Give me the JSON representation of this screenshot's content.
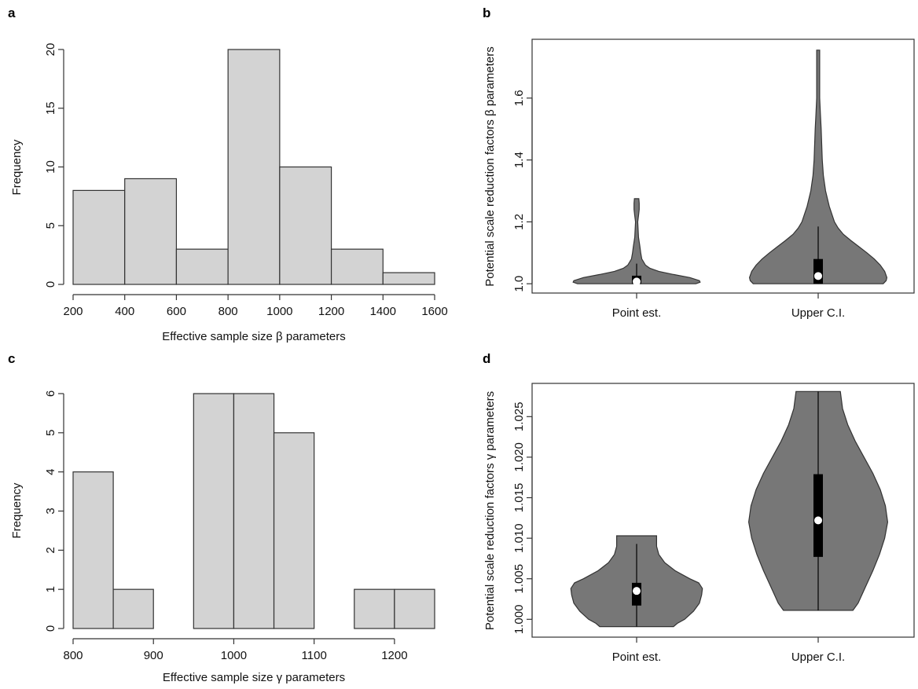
{
  "colors": {
    "hist_fill": "#d3d3d3",
    "violin_fill": "#777777",
    "line": "#333333",
    "median_dot": "#ffffff",
    "box": "#000000"
  },
  "chart_data": [
    {
      "panel": "a",
      "type": "bar",
      "bins": [
        [
          200,
          400
        ],
        [
          400,
          600
        ],
        [
          600,
          800
        ],
        [
          800,
          1000
        ],
        [
          1000,
          1200
        ],
        [
          1200,
          1400
        ],
        [
          1400,
          1600
        ]
      ],
      "values": [
        8,
        9,
        3,
        20,
        10,
        3,
        1
      ],
      "xlabel": "Effective sample size β parameters",
      "ylabel": "Frequency",
      "xticks": [
        200,
        400,
        600,
        800,
        1000,
        1200,
        1400,
        1600
      ],
      "yticks": [
        0,
        5,
        10,
        15,
        20
      ],
      "xlim": [
        200,
        1600
      ],
      "ylim": [
        0,
        20
      ]
    },
    {
      "panel": "b",
      "type": "violin",
      "categories": [
        "Point est.",
        "Upper C.I."
      ],
      "ylabel": "Potential scale reduction factors β parameters",
      "yticks": [
        1.0,
        1.2,
        1.4,
        1.6
      ],
      "ytick_labels": [
        "1.0",
        "1.2",
        "1.4",
        "1.6"
      ],
      "ylim": [
        0.97,
        1.79
      ],
      "violins": [
        {
          "name": "Point est.",
          "min": 1.0,
          "max": 1.275,
          "q1": 1.0,
          "median": 1.007,
          "q3": 1.026,
          "whisker_high": 1.065,
          "profile": [
            [
              1.0,
              0.8
            ],
            [
              1.005,
              0.86
            ],
            [
              1.01,
              0.85
            ],
            [
              1.02,
              0.72
            ],
            [
              1.03,
              0.5
            ],
            [
              1.04,
              0.3
            ],
            [
              1.05,
              0.18
            ],
            [
              1.06,
              0.12
            ],
            [
              1.08,
              0.07
            ],
            [
              1.1,
              0.055
            ],
            [
              1.12,
              0.045
            ],
            [
              1.15,
              0.025
            ],
            [
              1.2,
              0.015
            ],
            [
              1.22,
              0.025
            ],
            [
              1.24,
              0.035
            ],
            [
              1.26,
              0.035
            ],
            [
              1.275,
              0.03
            ]
          ]
        },
        {
          "name": "Upper C.I.",
          "min": 1.0,
          "max": 1.755,
          "q1": 1.0,
          "median": 1.025,
          "q3": 1.08,
          "whisker_high": 1.185,
          "profile": [
            [
              1.0,
              0.88
            ],
            [
              1.01,
              0.92
            ],
            [
              1.02,
              0.93
            ],
            [
              1.04,
              0.9
            ],
            [
              1.06,
              0.84
            ],
            [
              1.08,
              0.76
            ],
            [
              1.1,
              0.66
            ],
            [
              1.12,
              0.55
            ],
            [
              1.14,
              0.44
            ],
            [
              1.16,
              0.34
            ],
            [
              1.18,
              0.27
            ],
            [
              1.2,
              0.22
            ],
            [
              1.25,
              0.15
            ],
            [
              1.3,
              0.1
            ],
            [
              1.35,
              0.07
            ],
            [
              1.4,
              0.055
            ],
            [
              1.5,
              0.04
            ],
            [
              1.55,
              0.03
            ],
            [
              1.6,
              0.02
            ],
            [
              1.65,
              0.02
            ],
            [
              1.7,
              0.02
            ],
            [
              1.755,
              0.02
            ]
          ]
        }
      ]
    },
    {
      "panel": "c",
      "type": "bar",
      "bins": [
        [
          800,
          850
        ],
        [
          850,
          900
        ],
        [
          900,
          950
        ],
        [
          950,
          1000
        ],
        [
          1000,
          1050
        ],
        [
          1050,
          1100
        ],
        [
          1100,
          1150
        ],
        [
          1150,
          1200
        ],
        [
          1200,
          1250
        ]
      ],
      "values": [
        4,
        1,
        0,
        6,
        6,
        5,
        0,
        1,
        1
      ],
      "xlabel": "Effective sample size γ parameters",
      "ylabel": "Frequency",
      "xticks": [
        800,
        900,
        1000,
        1100,
        1200
      ],
      "yticks": [
        0,
        1,
        2,
        3,
        4,
        5,
        6
      ],
      "xlim": [
        800,
        1250
      ],
      "ylim": [
        0,
        6
      ]
    },
    {
      "panel": "d",
      "type": "violin",
      "categories": [
        "Point est.",
        "Upper C.I."
      ],
      "ylabel": "Potential scale reduction factors γ parameters",
      "yticks": [
        1.0,
        1.005,
        1.01,
        1.015,
        1.02,
        1.025
      ],
      "ytick_labels": [
        "1.000",
        "1.005",
        "1.010",
        "1.015",
        "1.020",
        "1.025"
      ],
      "ylim": [
        0.9978,
        1.0291
      ],
      "violins": [
        {
          "name": "Point est.",
          "min": 0.9991,
          "max": 1.0103,
          "q1": 1.0017,
          "median": 1.0035,
          "q3": 1.0045,
          "whisker_high": 1.0093,
          "profile": [
            [
              0.9991,
              0.5
            ],
            [
              0.9995,
              0.55
            ],
            [
              1.0,
              0.65
            ],
            [
              1.001,
              0.77
            ],
            [
              1.002,
              0.85
            ],
            [
              1.003,
              0.88
            ],
            [
              1.0038,
              0.89
            ],
            [
              1.0045,
              0.84
            ],
            [
              1.005,
              0.72
            ],
            [
              1.006,
              0.52
            ],
            [
              1.007,
              0.38
            ],
            [
              1.008,
              0.3
            ],
            [
              1.009,
              0.27
            ],
            [
              1.01,
              0.27
            ],
            [
              1.0103,
              0.27
            ]
          ]
        },
        {
          "name": "Upper C.I.",
          "min": 1.0011,
          "max": 1.0281,
          "q1": 1.0077,
          "median": 1.0122,
          "q3": 1.0179,
          "whisker_high": 1.0281,
          "profile": [
            [
              1.0011,
              0.47
            ],
            [
              1.002,
              0.54
            ],
            [
              1.004,
              0.64
            ],
            [
              1.006,
              0.74
            ],
            [
              1.008,
              0.83
            ],
            [
              1.01,
              0.9
            ],
            [
              1.012,
              0.94
            ],
            [
              1.014,
              0.91
            ],
            [
              1.016,
              0.84
            ],
            [
              1.018,
              0.74
            ],
            [
              1.02,
              0.62
            ],
            [
              1.022,
              0.5
            ],
            [
              1.024,
              0.4
            ],
            [
              1.026,
              0.33
            ],
            [
              1.0281,
              0.3
            ]
          ]
        }
      ]
    }
  ]
}
